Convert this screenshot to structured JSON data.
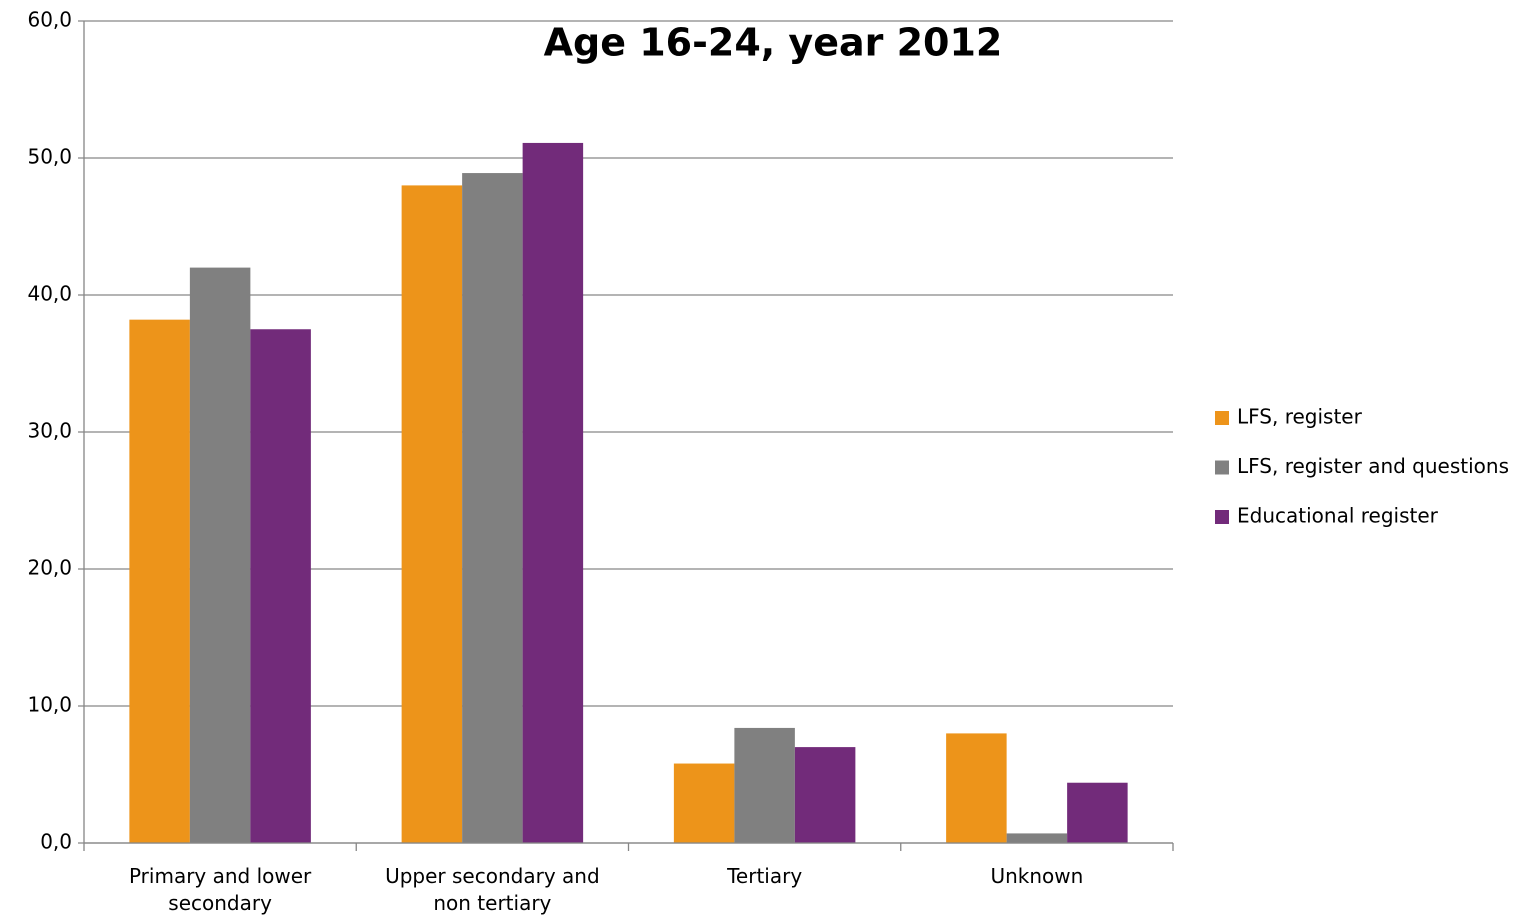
{
  "chart_data": {
    "type": "bar",
    "title": "Age 16-24, year 2012",
    "categories": [
      "Primary and lower secondary",
      "Upper secondary and non tertiary",
      "Tertiary",
      "Unknown"
    ],
    "series": [
      {
        "name": "LFS, register",
        "color": "#ed941a",
        "values": [
          38.2,
          48.0,
          5.8,
          8.0
        ]
      },
      {
        "name": "LFS, register and questions",
        "color": "#808080",
        "values": [
          42.0,
          48.9,
          8.4,
          0.7
        ]
      },
      {
        "name": "Educational register",
        "color": "#722b7a",
        "values": [
          37.5,
          51.1,
          7.0,
          4.4
        ]
      }
    ],
    "ylim": [
      0,
      60
    ],
    "yticks": [
      {
        "value": 0,
        "label": "0,0"
      },
      {
        "value": 10,
        "label": "10,0"
      },
      {
        "value": 20,
        "label": "20,0"
      },
      {
        "value": 30,
        "label": "30,0"
      },
      {
        "value": 40,
        "label": "40,0"
      },
      {
        "value": 50,
        "label": "50,0"
      },
      {
        "value": 60,
        "label": "60,0"
      }
    ],
    "grid": true,
    "legend": "right"
  }
}
